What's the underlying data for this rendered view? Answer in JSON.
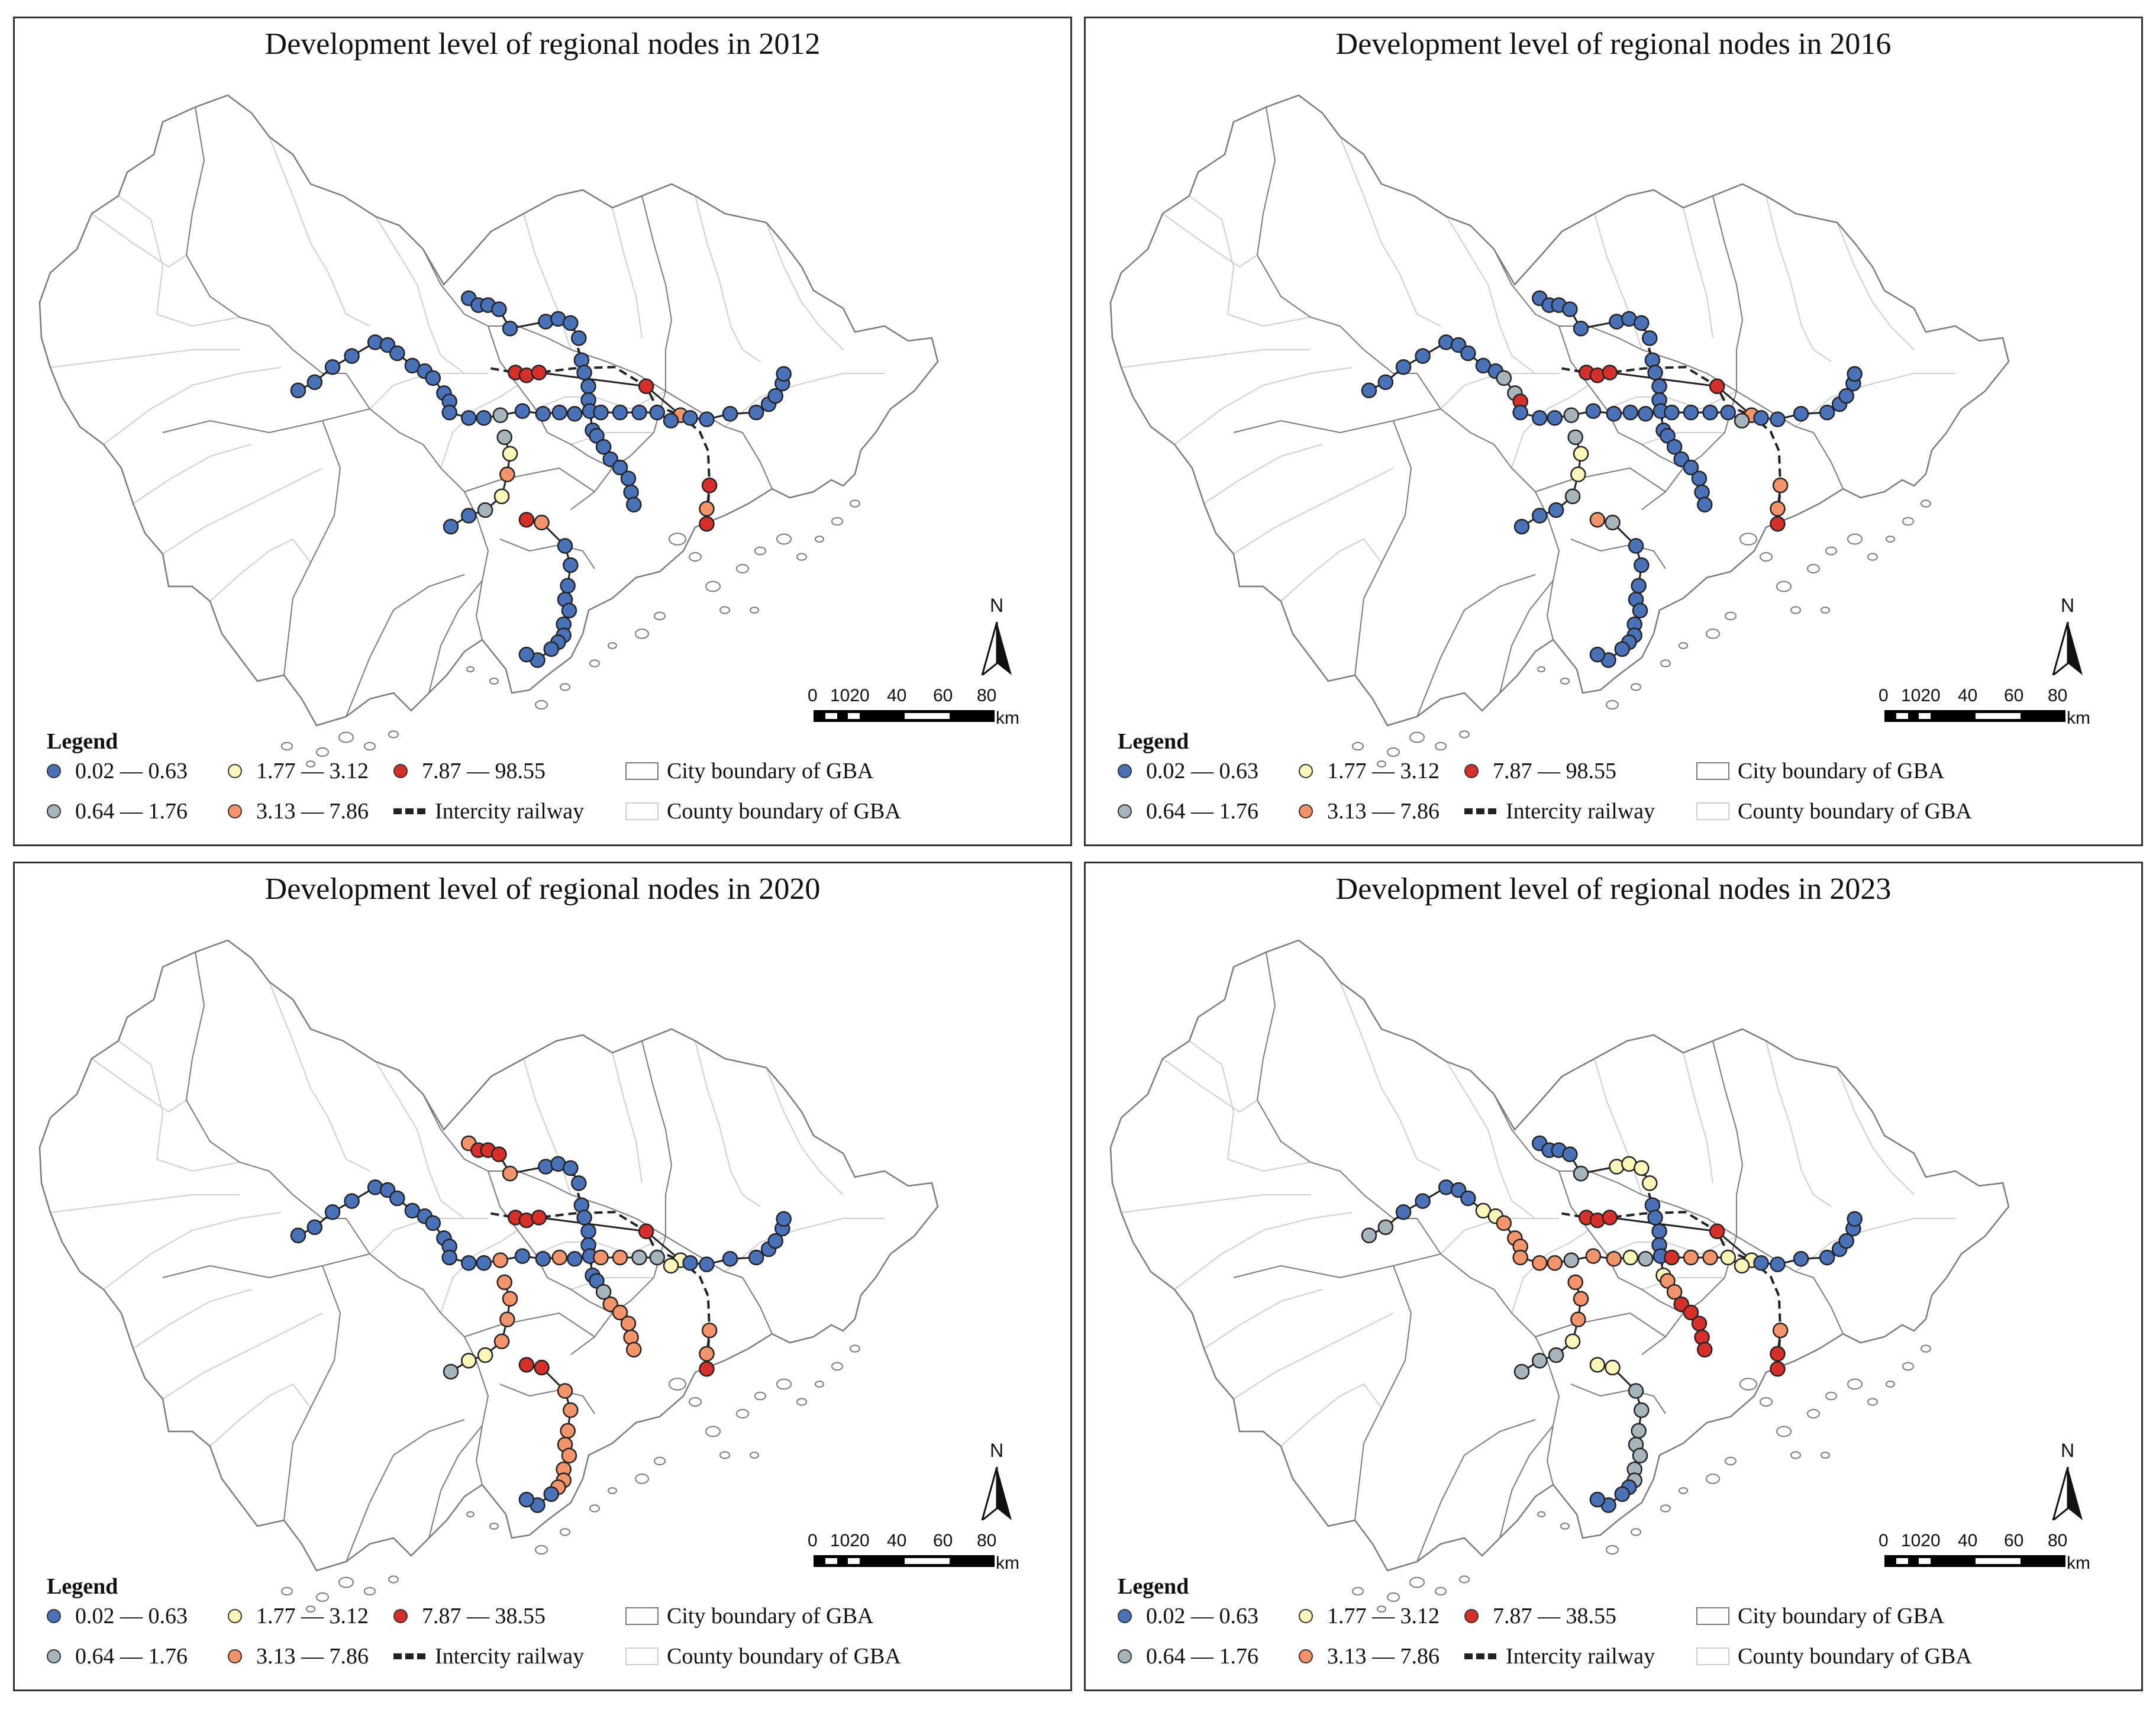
{
  "colors": {
    "class1": "#4a72b8",
    "class2": "#a6b4bc",
    "class3": "#fbf7b8",
    "class4": "#f4946a",
    "class5": "#d7302a",
    "city_boundary": "#7a7a7a",
    "county_boundary": "#cfcfcf",
    "railway": "#222222"
  },
  "legend_common": {
    "title": "Legend",
    "city_boundary": "City boundary of GBA",
    "county_boundary": "County boundary of GBA",
    "railway": "Intercity railway"
  },
  "north_label": "N",
  "scale": {
    "ticks": [
      "0",
      "1020",
      "40",
      "60",
      "80"
    ],
    "unit": "km"
  },
  "panels": [
    {
      "title": "Development level of regional nodes in 2012",
      "classes": [
        "0.02 — 0.63",
        "0.64 — 1.76",
        "1.77 — 3.12",
        "3.13 — 7.86",
        "7.87 — 98.55"
      ]
    },
    {
      "title": "Development level of regional nodes in 2016",
      "classes": [
        "0.02 — 0.63",
        "0.64 — 1.76",
        "1.77 — 3.12",
        "3.13 — 7.86",
        "7.87 — 98.55"
      ]
    },
    {
      "title": "Development level of regional nodes in 2020",
      "classes": [
        "0.02 — 0.63",
        "0.64 — 1.76",
        "1.77 — 3.12",
        "3.13 — 7.86",
        "7.87 — 38.55"
      ]
    },
    {
      "title": "Development level of regional nodes in 2023",
      "classes": [
        "0.02 — 0.63",
        "0.64 — 1.76",
        "1.77 — 3.12",
        "3.13 — 7.86",
        "7.87 — 38.55"
      ]
    }
  ]
}
